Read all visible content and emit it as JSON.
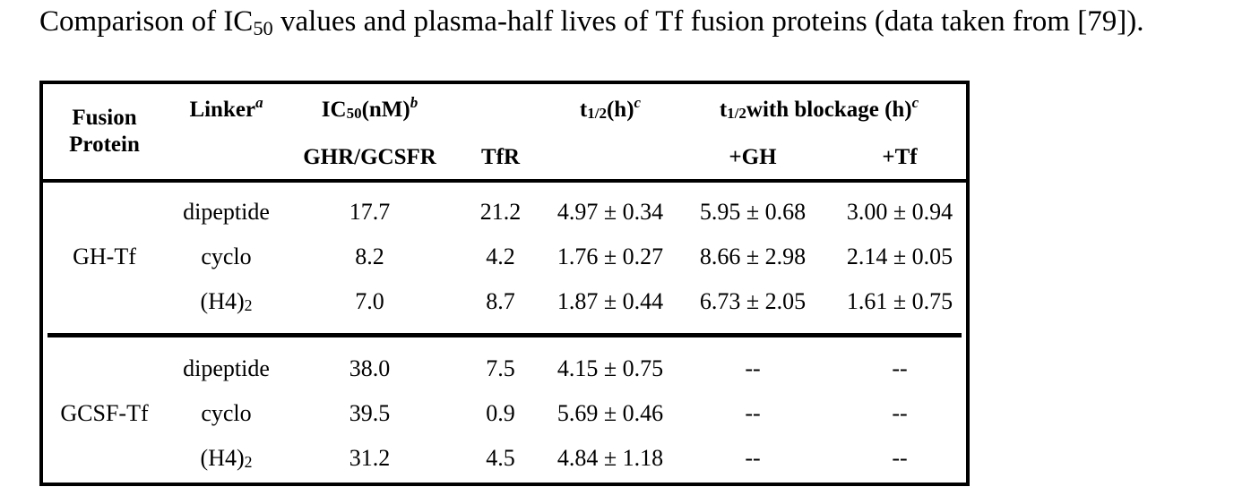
{
  "caption": {
    "pre": "Comparison of IC",
    "sub": "50",
    "post": " values and plasma-half lives of Tf fusion proteins (data taken from [79])."
  },
  "table": {
    "header": {
      "fusion_protein": {
        "line1": "Fusion",
        "line2": "Protein"
      },
      "linker": {
        "base": "Linker",
        "sup": "a"
      },
      "ic50": {
        "pre": "IC",
        "sub": "50",
        "post": " (nM)",
        "sup": "b"
      },
      "ic50_subcols": {
        "ghr_gcsfr": "GHR/GCSFR",
        "tfr": "TfR"
      },
      "t_half": {
        "pre": "t",
        "sub": "1/2",
        "post": " (h)",
        "sup": "c"
      },
      "t_half_blockage": {
        "pre": "t",
        "sub": "1/2",
        "post": " with blockage (h)",
        "sup": "c"
      },
      "blockage_subcols": {
        "gh": "+GH",
        "tf": "+Tf"
      }
    },
    "groups": [
      {
        "fusion_protein": "GH-Tf",
        "rows": [
          {
            "linker": {
              "base": "dipeptide",
              "sub": ""
            },
            "ghr_gcsfr": "17.7",
            "tfr": "21.2",
            "t_half": "4.97 ± 0.34",
            "gh": "5.95 ± 0.68",
            "tf": "3.00 ± 0.94"
          },
          {
            "linker": {
              "base": "cyclo",
              "sub": ""
            },
            "ghr_gcsfr": "8.2",
            "tfr": "4.2",
            "t_half": "1.76 ± 0.27",
            "gh": "8.66 ± 2.98",
            "tf": "2.14 ± 0.05"
          },
          {
            "linker": {
              "base": "(H4)",
              "sub": "2"
            },
            "ghr_gcsfr": "7.0",
            "tfr": "8.7",
            "t_half": "1.87 ± 0.44",
            "gh": "6.73 ± 2.05",
            "tf": "1.61 ± 0.75"
          }
        ]
      },
      {
        "fusion_protein": "GCSF-Tf",
        "rows": [
          {
            "linker": {
              "base": "dipeptide",
              "sub": ""
            },
            "ghr_gcsfr": "38.0",
            "tfr": "7.5",
            "t_half": "4.15 ± 0.75",
            "gh": "--",
            "tf": "--"
          },
          {
            "linker": {
              "base": "cyclo",
              "sub": ""
            },
            "ghr_gcsfr": "39.5",
            "tfr": "0.9",
            "t_half": "5.69 ± 0.46",
            "gh": "--",
            "tf": "--"
          },
          {
            "linker": {
              "base": "(H4)",
              "sub": "2"
            },
            "ghr_gcsfr": "31.2",
            "tfr": "4.5",
            "t_half": "4.84 ± 1.18",
            "gh": "--",
            "tf": "--"
          }
        ]
      }
    ]
  }
}
